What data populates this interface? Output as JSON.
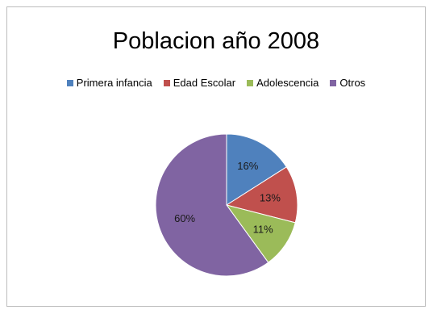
{
  "chart_data": {
    "type": "pie",
    "title": "Poblacion año 2008",
    "categories": [
      "Primera infancia",
      "Edad Escolar",
      "Adolescencia",
      "Otros"
    ],
    "values": [
      16,
      13,
      11,
      60
    ],
    "labels": [
      "16%",
      "13%",
      "11%",
      "60%"
    ],
    "colors": [
      "#4f81bd",
      "#c0504d",
      "#9bbb59",
      "#8064a2"
    ],
    "legend_position": "top"
  }
}
